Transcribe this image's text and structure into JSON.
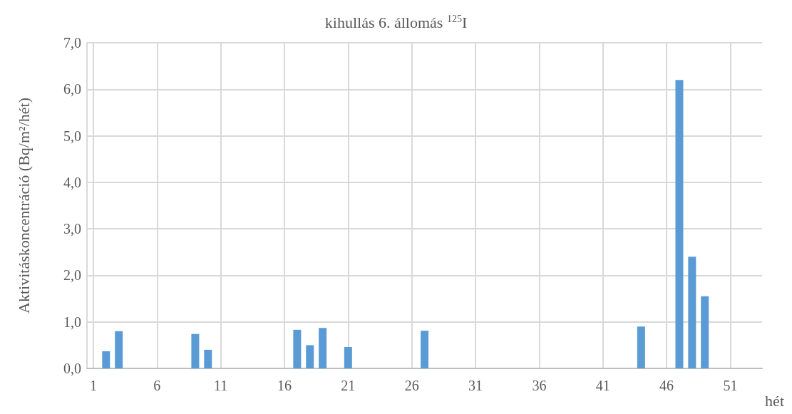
{
  "chart_data": {
    "type": "bar",
    "title": "kihullás 6. állomás $^{125}$I",
    "xlabel": "hét",
    "ylabel": "Aktivitáskoncentráció (Bq/m²/hét)",
    "x": [
      1,
      2,
      3,
      4,
      5,
      6,
      7,
      8,
      9,
      10,
      11,
      12,
      13,
      14,
      15,
      16,
      17,
      18,
      19,
      20,
      21,
      22,
      23,
      24,
      25,
      26,
      27,
      28,
      29,
      30,
      31,
      32,
      33,
      34,
      35,
      36,
      37,
      38,
      39,
      40,
      41,
      42,
      43,
      44,
      45,
      46,
      47,
      48,
      49,
      50,
      51,
      52,
      53
    ],
    "values": [
      0,
      0.37,
      0.8,
      0,
      0,
      0,
      0,
      0,
      0.74,
      0.4,
      0,
      0,
      0,
      0,
      0,
      0,
      0.83,
      0.5,
      0.87,
      0,
      0.46,
      0,
      0,
      0,
      0,
      0,
      0.81,
      0,
      0,
      0,
      0,
      0,
      0,
      0,
      0,
      0,
      0,
      0,
      0,
      0,
      0,
      0,
      0,
      0.9,
      0,
      0,
      6.2,
      2.4,
      1.55,
      0,
      0,
      0,
      0
    ],
    "color": "#5b9bd5",
    "xlim": [
      0.5,
      53.5
    ],
    "xticks": [
      1,
      6,
      11,
      16,
      21,
      26,
      31,
      36,
      41,
      46,
      51
    ],
    "ylim": [
      0,
      7
    ],
    "yticks": [
      {
        "value": 0,
        "label": "0,0"
      },
      {
        "value": 1,
        "label": "1,0"
      },
      {
        "value": 2,
        "label": "2,0"
      },
      {
        "value": 3,
        "label": "3,0"
      },
      {
        "value": 4,
        "label": "4,0"
      },
      {
        "value": 5,
        "label": "5,0"
      },
      {
        "value": 6,
        "label": "6,0"
      },
      {
        "value": 7,
        "label": "7,0"
      }
    ],
    "grid": true
  }
}
